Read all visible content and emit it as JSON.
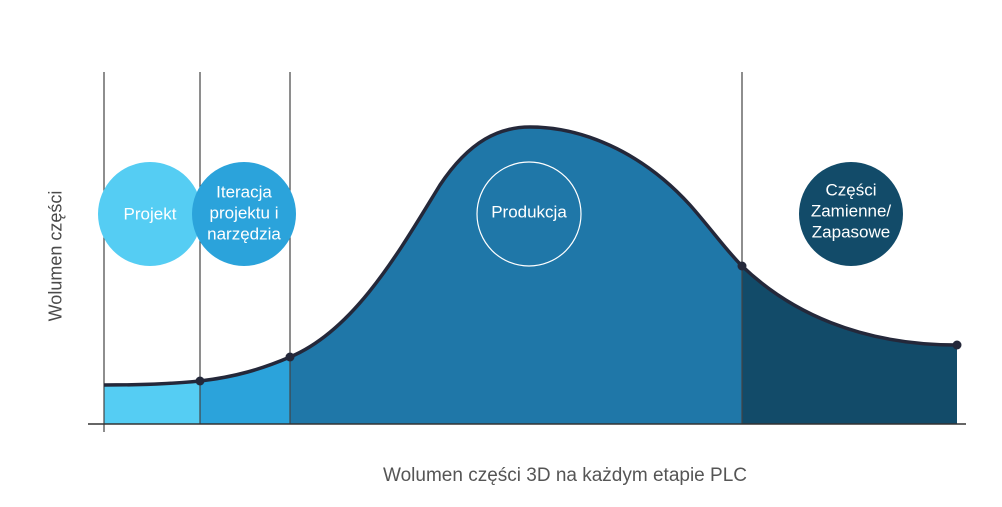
{
  "y_axis_label": "Wolumen części",
  "x_axis_label": "Wolumen części 3D na każdym etapie PLC",
  "stages": [
    {
      "label": "Projekt",
      "circle_color": "#55cdf3",
      "area_color": "#55cdf3"
    },
    {
      "label": "Iteracja\nprojektu i\nnarzędzia",
      "circle_color": "#2ba3db",
      "area_color": "#2ba3db"
    },
    {
      "label": "Produkcja",
      "circle_color": "none",
      "area_color": "#1f77a8"
    },
    {
      "label": "Części\nZamienne/\nZapasowe",
      "circle_color": "#124b69",
      "area_color": "#124b69"
    }
  ],
  "colors": {
    "curve": "#24283a",
    "axis": "#333333",
    "divider": "#444444",
    "production_circle_stroke": "#ffffff"
  }
}
